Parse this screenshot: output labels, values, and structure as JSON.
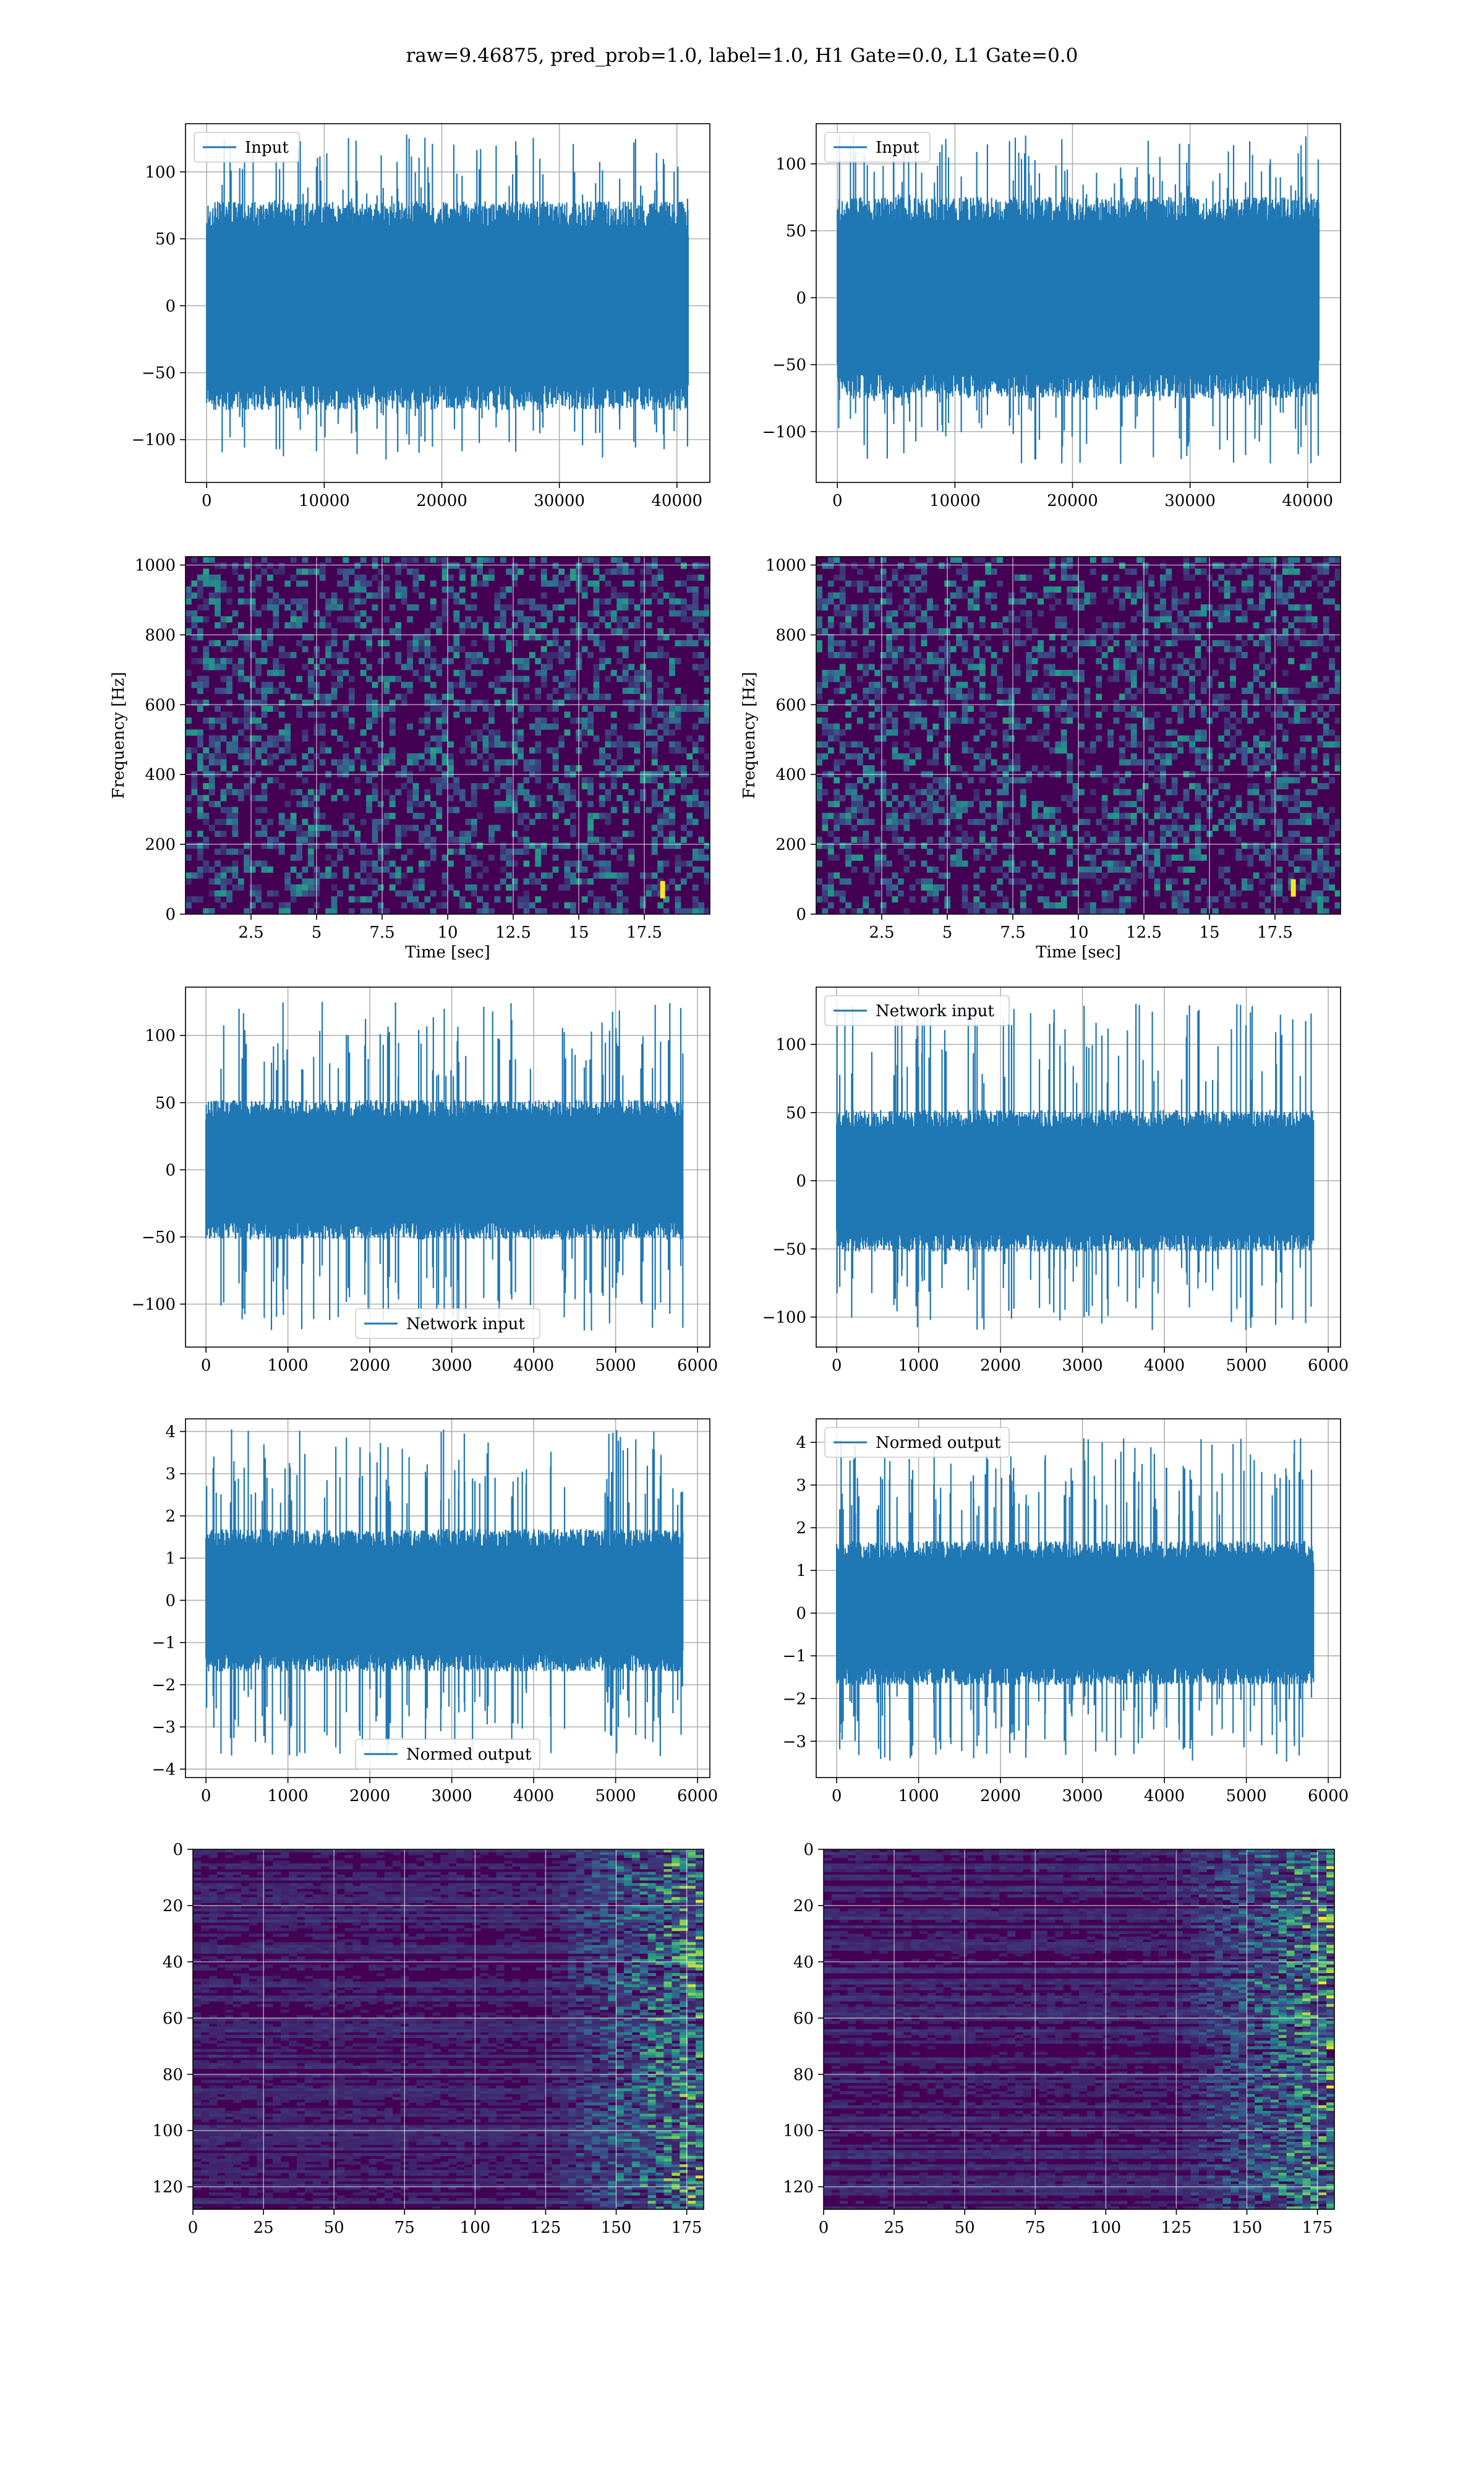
{
  "figure": {
    "suptitle": "raw=9.46875, pred_prob=1.0, label=1.0, H1 Gate=0.0, L1 Gate=0.0",
    "colors": {
      "trace": "#1f77b4",
      "grid": "#b0b0b0",
      "axes": "#000000",
      "viridis_low": "#440154",
      "viridis_mid": "#21918c",
      "viridis_high": "#fde725"
    }
  },
  "chart_data": [
    {
      "id": "input-h1",
      "type": "line",
      "xlim": [
        -1800,
        42800
      ],
      "ylim": [
        -132,
        136
      ],
      "xticks": [
        0,
        10000,
        20000,
        30000,
        40000
      ],
      "yticks": [
        -100,
        -50,
        0,
        50,
        100
      ],
      "series": [
        {
          "name": "Input",
          "x_range": [
            0,
            40960
          ],
          "y_envelope_core": [
            -60,
            60
          ],
          "y_peaks": [
            -115,
            128
          ]
        }
      ],
      "legend": "upper-left",
      "grid": true
    },
    {
      "id": "input-l1",
      "type": "line",
      "xlim": [
        -1800,
        42800
      ],
      "ylim": [
        -138,
        130
      ],
      "xticks": [
        0,
        10000,
        20000,
        30000,
        40000
      ],
      "yticks": [
        -100,
        -50,
        0,
        50,
        100
      ],
      "series": [
        {
          "name": "Input",
          "x_range": [
            0,
            40960
          ],
          "y_envelope_core": [
            -58,
            58
          ],
          "y_peaks": [
            -125,
            122
          ]
        }
      ],
      "legend": "upper-left",
      "grid": true
    },
    {
      "id": "spectrogram-h1",
      "type": "heatmap",
      "xlim": [
        0,
        20
      ],
      "ylim": [
        0,
        1024
      ],
      "xticks": [
        2.5,
        5.0,
        7.5,
        10.0,
        12.5,
        15.0,
        17.5
      ],
      "yticks": [
        0,
        200,
        400,
        600,
        800,
        1000
      ],
      "xlabel": "Time [sec]",
      "ylabel": "Frequency [Hz]",
      "hotspot": {
        "t": 18.2,
        "f": 70
      },
      "grid": true
    },
    {
      "id": "spectrogram-l1",
      "type": "heatmap",
      "xlim": [
        0,
        20
      ],
      "ylim": [
        0,
        1024
      ],
      "xticks": [
        2.5,
        5.0,
        7.5,
        10.0,
        12.5,
        15.0,
        17.5
      ],
      "yticks": [
        0,
        200,
        400,
        600,
        800,
        1000
      ],
      "xlabel": "Time [sec]",
      "ylabel": "Frequency [Hz]",
      "hotspot": {
        "t": 18.2,
        "f": 75
      },
      "grid": true
    },
    {
      "id": "network-input-h1",
      "type": "line",
      "xlim": [
        -250,
        6150
      ],
      "ylim": [
        -132,
        136
      ],
      "xticks": [
        0,
        1000,
        2000,
        3000,
        4000,
        5000,
        6000
      ],
      "yticks": [
        -100,
        -50,
        0,
        50,
        100
      ],
      "series": [
        {
          "name": "Network input",
          "x_range": [
            0,
            5820
          ],
          "y_envelope_core": [
            -40,
            40
          ],
          "y_peaks": [
            -120,
            125
          ]
        }
      ],
      "legend": "lower-center",
      "grid": true
    },
    {
      "id": "network-input-l1",
      "type": "line",
      "xlim": [
        -250,
        6150
      ],
      "ylim": [
        -122,
        142
      ],
      "xticks": [
        0,
        1000,
        2000,
        3000,
        4000,
        5000,
        6000
      ],
      "yticks": [
        -100,
        -50,
        0,
        50,
        100
      ],
      "series": [
        {
          "name": "Network input",
          "x_range": [
            0,
            5820
          ],
          "y_envelope_core": [
            -40,
            40
          ],
          "y_peaks": [
            -110,
            130
          ]
        }
      ],
      "legend": "upper-left",
      "grid": true
    },
    {
      "id": "normed-output-h1",
      "type": "line",
      "xlim": [
        -250,
        6150
      ],
      "ylim": [
        -4.2,
        4.3
      ],
      "xticks": [
        0,
        1000,
        2000,
        3000,
        4000,
        5000,
        6000
      ],
      "yticks": [
        -4,
        -3,
        -2,
        -1,
        0,
        1,
        2,
        3,
        4
      ],
      "series": [
        {
          "name": "Normed output",
          "x_range": [
            0,
            5820
          ],
          "y_envelope_core": [
            -1.3,
            1.3
          ],
          "y_peaks": [
            -3.7,
            4.1
          ]
        }
      ],
      "legend": "lower-center",
      "grid": true
    },
    {
      "id": "normed-output-l1",
      "type": "line",
      "xlim": [
        -250,
        6150
      ],
      "ylim": [
        -3.85,
        4.55
      ],
      "xticks": [
        0,
        1000,
        2000,
        3000,
        4000,
        5000,
        6000
      ],
      "yticks": [
        -3,
        -2,
        -1,
        0,
        1,
        2,
        3,
        4
      ],
      "series": [
        {
          "name": "Normed output",
          "x_range": [
            0,
            5820
          ],
          "y_envelope_core": [
            -1.3,
            1.3
          ],
          "y_peaks": [
            -3.5,
            4.1
          ]
        }
      ],
      "legend": "upper-left",
      "grid": true
    },
    {
      "id": "feature-map-h1",
      "type": "heatmap",
      "xlim": [
        0,
        181
      ],
      "ylim": [
        128,
        0
      ],
      "xticks": [
        0,
        25,
        50,
        75,
        100,
        125,
        150,
        175
      ],
      "yticks": [
        0,
        20,
        40,
        60,
        80,
        100,
        120
      ],
      "hot_columns": [
        150,
        180
      ],
      "grid": true
    },
    {
      "id": "feature-map-l1",
      "type": "heatmap",
      "xlim": [
        0,
        181
      ],
      "ylim": [
        128,
        0
      ],
      "xticks": [
        0,
        25,
        50,
        75,
        100,
        125,
        150,
        175
      ],
      "yticks": [
        0,
        20,
        40,
        60,
        80,
        100,
        120
      ],
      "hot_columns": [
        150,
        180
      ],
      "grid": true
    }
  ]
}
